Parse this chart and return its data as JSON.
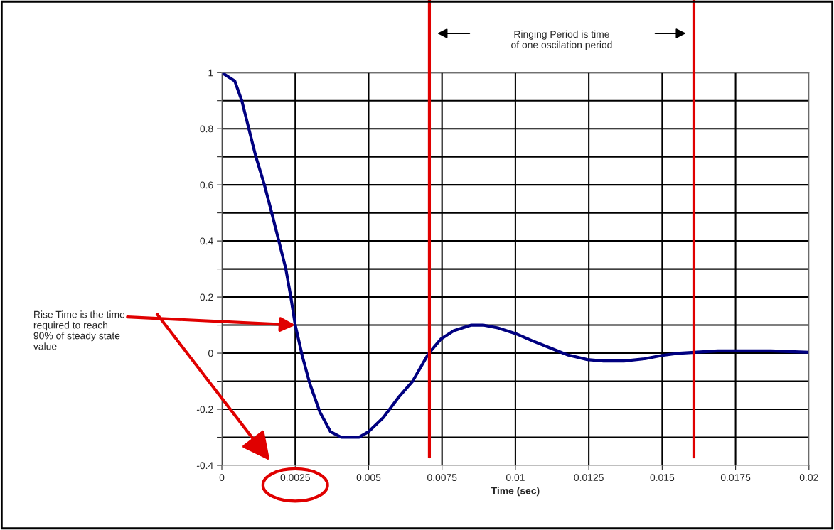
{
  "chart_data": {
    "type": "line",
    "xlabel": "Time (sec)",
    "x": [
      0,
      0.00044,
      0.00068,
      0.00092,
      0.00116,
      0.00145,
      0.0017,
      0.00194,
      0.00218,
      0.00235,
      0.0025,
      0.00274,
      0.003,
      0.00334,
      0.0037,
      0.00407,
      0.00467,
      0.005,
      0.0055,
      0.006,
      0.0065,
      0.00705,
      0.00746,
      0.0079,
      0.0085,
      0.0089,
      0.0094,
      0.01,
      0.0106,
      0.0112,
      0.0118,
      0.01245,
      0.013,
      0.0137,
      0.0144,
      0.015,
      0.0156,
      0.0169,
      0.0187,
      0.02
    ],
    "series": [
      {
        "color": "#000080",
        "values": [
          1.0,
          0.97,
          0.9,
          0.8,
          0.7,
          0.6,
          0.5,
          0.4,
          0.3,
          0.2,
          0.1,
          -0.01,
          -0.11,
          -0.21,
          -0.28,
          -0.3,
          -0.3,
          -0.28,
          -0.23,
          -0.16,
          -0.1,
          0.0,
          0.05,
          0.08,
          0.1,
          0.1,
          0.09,
          0.07,
          0.043,
          0.018,
          -0.007,
          -0.023,
          -0.028,
          -0.028,
          -0.02,
          -0.008,
          0.0,
          0.008,
          0.008,
          0.003
        ]
      }
    ],
    "xlim": [
      0,
      0.02
    ],
    "xticks": [
      0,
      0.0025,
      0.005,
      0.0075,
      0.01,
      0.0125,
      0.015,
      0.0175,
      0.02
    ],
    "ylim": [
      -0.4,
      1
    ],
    "yticks": [
      -0.4,
      {
        "value": -0.3,
        "label": null
      },
      -0.2,
      {
        "value": -0.1,
        "label": null
      },
      0,
      {
        "value": 0.1,
        "label": null
      },
      0.2,
      {
        "value": 0.3,
        "label": null
      },
      0.4,
      {
        "value": 0.5,
        "label": null
      },
      0.6,
      {
        "value": 0.7,
        "label": null
      },
      0.8,
      {
        "value": 0.9,
        "label": null
      },
      1
    ],
    "grid": true,
    "legend": false,
    "marker": "none",
    "line_style": "solid",
    "ref_lines": [
      {
        "axis": "x",
        "value": 0.00707,
        "color": "#e00000"
      },
      {
        "axis": "x",
        "value": 0.01608,
        "color": "#e00000"
      }
    ],
    "annotations": [
      {
        "text": "Rise Time is the time\nrequired to reach\n90% of steady state\nvalue",
        "x": 0.0025,
        "y": 0.1
      },
      "Ringing Period is time\nof one oscilation period"
    ]
  }
}
